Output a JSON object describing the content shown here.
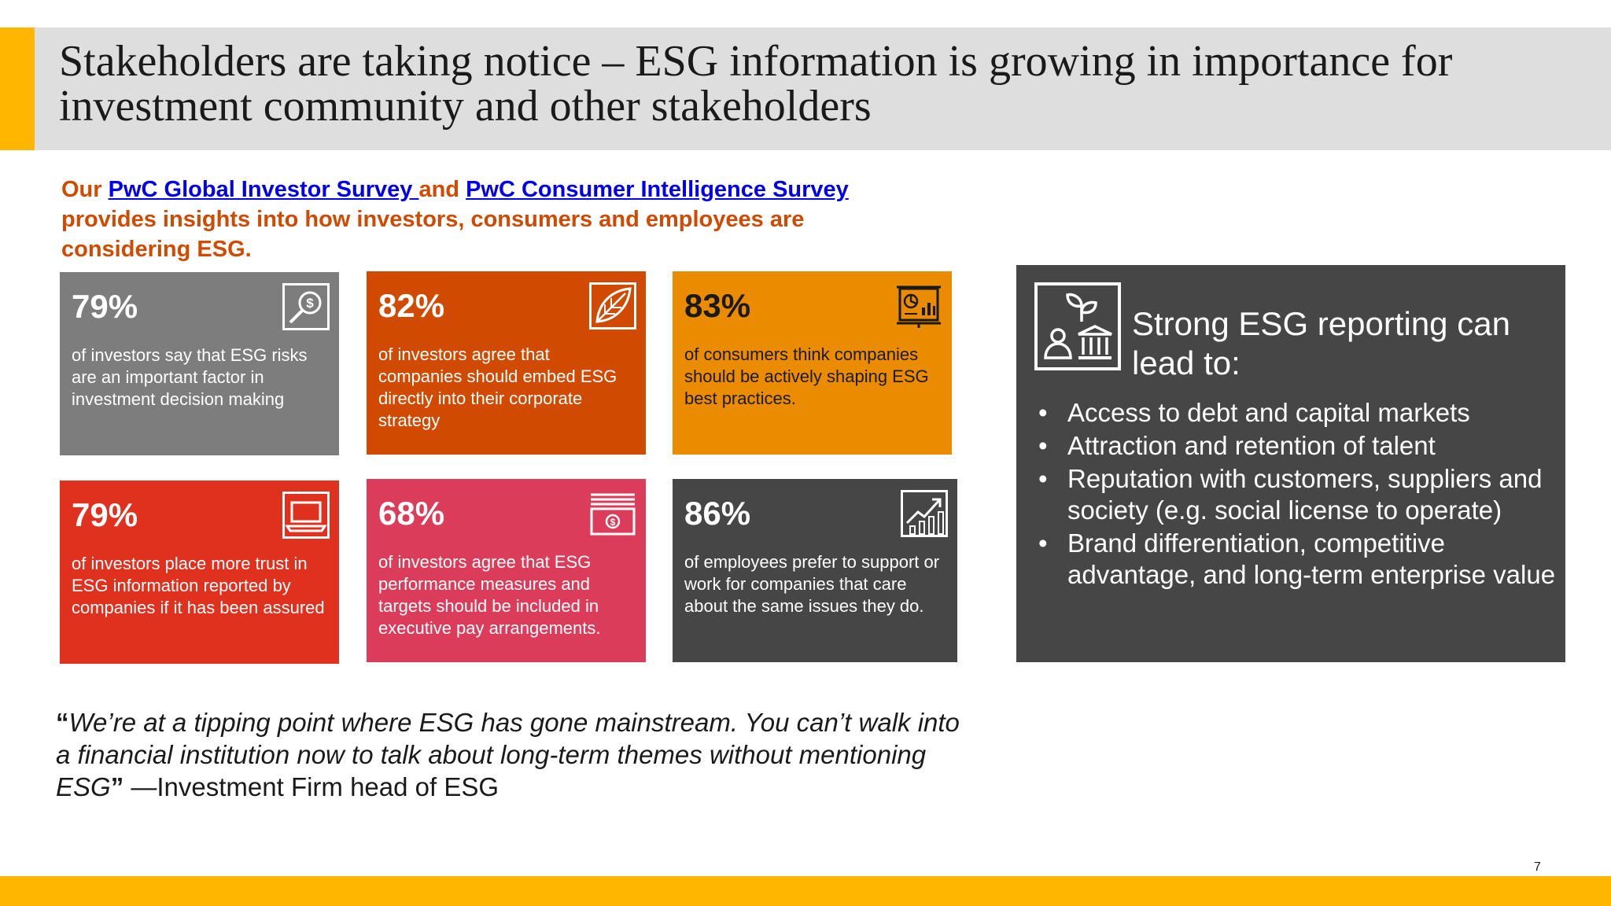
{
  "title": "Stakeholders are taking notice – ESG information is growing in importance for investment community and other stakeholders",
  "intro": {
    "prefix": "Our ",
    "link1": "PwC Global Investor Survey ",
    "middle": "and ",
    "link2": "PwC Consumer Intelligence Survey",
    "suffix": " provides insights into how investors, consumers and employees are considering ESG."
  },
  "tiles": [
    {
      "pct": "79%",
      "text": "of investors say that ESG risks are an important factor in investment decision making",
      "icon": "magnifier-dollar-icon",
      "color": "#7d7d7d"
    },
    {
      "pct": "82%",
      "text": "of investors agree that companies should embed ESG directly into their corporate strategy",
      "icon": "leaf-icon",
      "color": "#d04a02"
    },
    {
      "pct": "83%",
      "text": "of consumers think companies should be actively shaping ESG best practices.",
      "icon": "presentation-board-icon",
      "color": "#eb8c00"
    },
    {
      "pct": "79%",
      "text": "of investors place more trust in ESG information reported by companies if it has been assured",
      "icon": "laptop-icon",
      "color": "#e0301e"
    },
    {
      "pct": "68%",
      "text": "of investors agree that ESG performance measures and targets should be included in executive pay arrangements.",
      "icon": "money-bill-icon",
      "color": "#db3c5a"
    },
    {
      "pct": "86%",
      "text": "of employees prefer to support or work for companies that care about the same issues they do.",
      "icon": "growth-chart-icon",
      "color": "#464646"
    }
  ],
  "panel": {
    "icon": "esg-plant-person-bank-icon",
    "title": "Strong ESG reporting can lead to:",
    "bullets": [
      "Access to debt and capital markets",
      "Attraction and retention of talent",
      "Reputation with customers, suppliers and society (e.g. social license to operate)",
      "Brand differentiation, competitive advantage, and long-term enterprise value"
    ]
  },
  "quote": {
    "open": "“",
    "text": "We’re at a tipping point where ESG has gone mainstream. You can’t walk into a financial institution now to talk about long-term themes without mentioning ESG",
    "close": "”",
    "attribution": " —Investment Firm head of ESG"
  },
  "page_number": "7",
  "colors": {
    "accent": "#ffb600",
    "orange": "#d04a02"
  }
}
